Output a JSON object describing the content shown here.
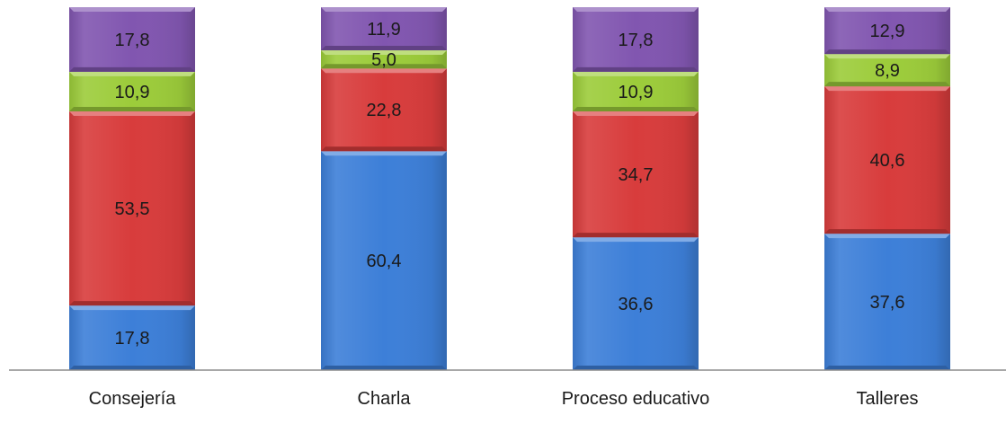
{
  "chart_data": {
    "type": "bar",
    "stacked": true,
    "categories": [
      "Consejería",
      "Charla",
      "Proceso educativo",
      "Talleres"
    ],
    "series": [
      {
        "color": "#3d7fd8",
        "values": [
          17.8,
          60.4,
          36.6,
          37.6
        ],
        "labels": [
          "17,8",
          "60,4",
          "36,6",
          "37,6"
        ]
      },
      {
        "color": "#d83c3c",
        "values": [
          53.5,
          22.8,
          34.7,
          40.6
        ],
        "labels": [
          "53,5",
          "22,8",
          "34,7",
          "40,6"
        ]
      },
      {
        "color": "#9ccc3a",
        "values": [
          10.9,
          5.0,
          10.9,
          8.9
        ],
        "labels": [
          "10,9",
          "5,0",
          "10,9",
          "8,9"
        ]
      },
      {
        "color": "#8156b0",
        "values": [
          17.8,
          11.9,
          17.8,
          12.9
        ],
        "labels": [
          "17,8",
          "11,9",
          "17,8",
          "12,9"
        ]
      }
    ],
    "ylim": [
      0,
      100
    ],
    "grid": false,
    "legend": "none",
    "title": "",
    "xlabel": "",
    "ylabel": ""
  }
}
